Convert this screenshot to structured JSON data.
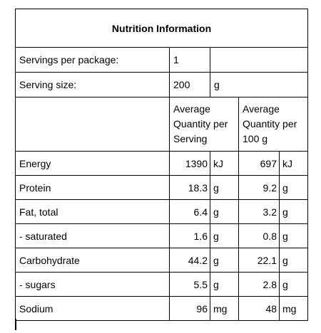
{
  "title": "Nutrition Information",
  "servings_per_package": {
    "label": "Servings per package:",
    "value": "1"
  },
  "serving_size": {
    "label": "Serving size:",
    "value": "200",
    "unit": "g"
  },
  "columns": {
    "per_serving": "Average Quantity per Serving",
    "per_100": "Average Quantity per 100 g"
  },
  "rows": [
    {
      "name": "Energy",
      "serving": "1390",
      "serving_unit": "kJ",
      "per100": "697",
      "per100_unit": "kJ"
    },
    {
      "name": "Protein",
      "serving": "18.3",
      "serving_unit": "g",
      "per100": "9.2",
      "per100_unit": "g"
    },
    {
      "name": "Fat, total",
      "serving": "6.4",
      "serving_unit": "g",
      "per100": "3.2",
      "per100_unit": "g"
    },
    {
      "name": "- saturated",
      "serving": "1.6",
      "serving_unit": "g",
      "per100": "0.8",
      "per100_unit": "g"
    },
    {
      "name": "Carbohydrate",
      "serving": "44.2",
      "serving_unit": "g",
      "per100": "22.1",
      "per100_unit": "g"
    },
    {
      "name": "- sugars",
      "serving": "5.5",
      "serving_unit": "g",
      "per100": "2.8",
      "per100_unit": "g"
    },
    {
      "name": "Sodium",
      "serving": "96",
      "serving_unit": "mg",
      "per100": "48",
      "per100_unit": "mg"
    }
  ]
}
